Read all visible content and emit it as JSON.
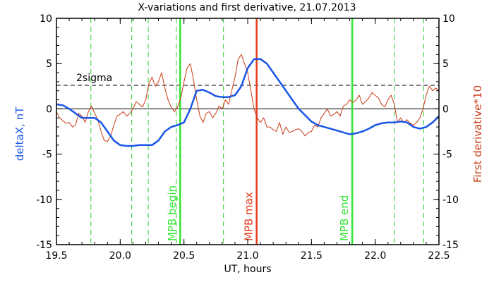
{
  "colors": {
    "blue_series": "#1a55e6",
    "red_series": "#c83a14",
    "green_marker": "#33e633",
    "red_marker": "#e63c1e",
    "green_dashed": "#33cc33",
    "axis": "#000000",
    "background": "#ffffff"
  },
  "chart_data": {
    "type": "line",
    "title": "X-variations and first derivative, 21.07.2013",
    "xlabel": "UT, hours",
    "ylabel_left": "deltaX, nT",
    "ylabel_right": "First derivative*10",
    "xlim": [
      19.5,
      22.5
    ],
    "ylim": [
      -15,
      10
    ],
    "x_ticks": [
      19.5,
      20.0,
      20.5,
      21.0,
      21.5,
      22.0,
      22.5
    ],
    "x_tick_labels": [
      "19.5",
      "20.0",
      "20.5",
      "21.0",
      "21.5",
      "22.0",
      "22.5"
    ],
    "y_ticks": [
      10,
      5,
      0,
      -5,
      -10,
      -15
    ],
    "y_tick_labels": [
      "10",
      "5",
      "0",
      "-5",
      "-10",
      "-15"
    ],
    "grid": false,
    "threshold": {
      "label": "2sigma",
      "value": 2.6
    },
    "zero_line": 0,
    "markers": [
      {
        "x": 20.47,
        "label": "MPB begin",
        "color": "green"
      },
      {
        "x": 21.07,
        "label": "MPB max",
        "color": "red"
      },
      {
        "x": 21.82,
        "label": "MPB end",
        "color": "green"
      }
    ],
    "dashed_lines": [
      19.77,
      20.09,
      20.22,
      20.44,
      20.81,
      22.15,
      22.38
    ],
    "series": [
      {
        "name": "deltaX, nT",
        "color": "blue",
        "x": [
          19.5,
          19.55,
          19.6,
          19.65,
          19.7,
          19.75,
          19.8,
          19.85,
          19.9,
          19.95,
          20.0,
          20.05,
          20.1,
          20.15,
          20.2,
          20.25,
          20.3,
          20.35,
          20.4,
          20.45,
          20.5,
          20.55,
          20.6,
          20.65,
          20.7,
          20.75,
          20.8,
          20.85,
          20.9,
          20.95,
          21.0,
          21.05,
          21.1,
          21.15,
          21.2,
          21.25,
          21.3,
          21.35,
          21.4,
          21.45,
          21.5,
          21.55,
          21.6,
          21.65,
          21.7,
          21.75,
          21.8,
          21.85,
          21.9,
          21.95,
          22.0,
          22.05,
          22.1,
          22.15,
          22.2,
          22.25,
          22.3,
          22.35,
          22.4,
          22.45,
          22.5
        ],
        "values": [
          0.5,
          0.4,
          0.0,
          -0.5,
          -1.0,
          -1.0,
          -1.0,
          -1.5,
          -2.5,
          -3.5,
          -4.0,
          -4.1,
          -4.1,
          -4.0,
          -4.0,
          -4.0,
          -3.5,
          -2.5,
          -2.0,
          -1.8,
          -1.5,
          0.0,
          2.0,
          2.1,
          1.8,
          1.4,
          1.3,
          1.3,
          1.5,
          2.5,
          4.5,
          5.5,
          5.5,
          5.0,
          4.0,
          3.0,
          2.0,
          1.0,
          0.0,
          -0.7,
          -1.4,
          -1.8,
          -2.0,
          -2.2,
          -2.4,
          -2.6,
          -2.8,
          -2.7,
          -2.5,
          -2.2,
          -1.8,
          -1.6,
          -1.5,
          -1.5,
          -1.4,
          -1.5,
          -2.0,
          -2.2,
          -2.0,
          -1.5,
          -0.8
        ]
      },
      {
        "name": "First derivative*10",
        "color": "red",
        "x": [
          19.5,
          19.525,
          19.55,
          19.575,
          19.6,
          19.625,
          19.65,
          19.675,
          19.7,
          19.725,
          19.75,
          19.775,
          19.8,
          19.825,
          19.85,
          19.875,
          19.9,
          19.925,
          19.95,
          19.975,
          20.0,
          20.025,
          20.05,
          20.075,
          20.1,
          20.125,
          20.15,
          20.175,
          20.2,
          20.225,
          20.25,
          20.275,
          20.3,
          20.325,
          20.35,
          20.375,
          20.4,
          20.425,
          20.45,
          20.475,
          20.5,
          20.525,
          20.55,
          20.575,
          20.6,
          20.625,
          20.65,
          20.675,
          20.7,
          20.725,
          20.75,
          20.775,
          20.8,
          20.825,
          20.85,
          20.875,
          20.9,
          20.925,
          20.95,
          20.975,
          21.0,
          21.025,
          21.05,
          21.075,
          21.1,
          21.125,
          21.15,
          21.175,
          21.2,
          21.225,
          21.25,
          21.275,
          21.3,
          21.325,
          21.35,
          21.375,
          21.4,
          21.425,
          21.45,
          21.475,
          21.5,
          21.525,
          21.55,
          21.575,
          21.6,
          21.625,
          21.65,
          21.675,
          21.7,
          21.725,
          21.75,
          21.775,
          21.8,
          21.825,
          21.85,
          21.875,
          21.9,
          21.925,
          21.95,
          21.975,
          22.0,
          22.025,
          22.05,
          22.075,
          22.1,
          22.125,
          22.15,
          22.175,
          22.2,
          22.225,
          22.25,
          22.275,
          22.3,
          22.325,
          22.35,
          22.375,
          22.4,
          22.425,
          22.45,
          22.475,
          22.5
        ],
        "values": [
          -0.3,
          -1.0,
          -1.3,
          -1.6,
          -1.5,
          -2.0,
          -1.8,
          -0.5,
          -0.8,
          -1.5,
          -0.3,
          0.3,
          -0.5,
          -1.2,
          -2.5,
          -3.5,
          -3.6,
          -3.0,
          -1.8,
          -0.8,
          -0.6,
          -0.3,
          -0.8,
          -0.5,
          0.0,
          0.8,
          0.5,
          0.2,
          1.0,
          2.8,
          3.5,
          2.5,
          3.0,
          4.0,
          2.3,
          1.0,
          0.2,
          -0.3,
          0.2,
          1.2,
          3.0,
          4.5,
          5.0,
          3.2,
          1.0,
          -0.8,
          -1.5,
          -0.5,
          -0.3,
          -1.0,
          -0.5,
          0.3,
          0.0,
          1.0,
          0.5,
          2.0,
          3.5,
          5.5,
          6.0,
          5.0,
          4.0,
          2.0,
          0.0,
          -1.0,
          -1.5,
          -1.0,
          -2.0,
          -2.0,
          -2.3,
          -2.5,
          -1.5,
          -2.8,
          -2.0,
          -2.6,
          -2.5,
          -2.3,
          -2.2,
          -2.5,
          -3.0,
          -2.6,
          -2.5,
          -1.8,
          -2.0,
          -1.0,
          -0.5,
          0.0,
          -0.8,
          -0.6,
          -0.3,
          -0.8,
          0.3,
          0.5,
          1.0,
          0.7,
          1.0,
          1.5,
          0.5,
          0.8,
          1.2,
          1.8,
          1.5,
          1.2,
          0.5,
          0.2,
          1.0,
          1.5,
          0.5,
          -1.5,
          -1.0,
          -1.5,
          -1.2,
          -1.6,
          -1.8,
          -1.5,
          -1.0,
          0.0,
          1.5,
          2.5,
          2.0,
          2.3,
          2.0
        ]
      }
    ]
  }
}
